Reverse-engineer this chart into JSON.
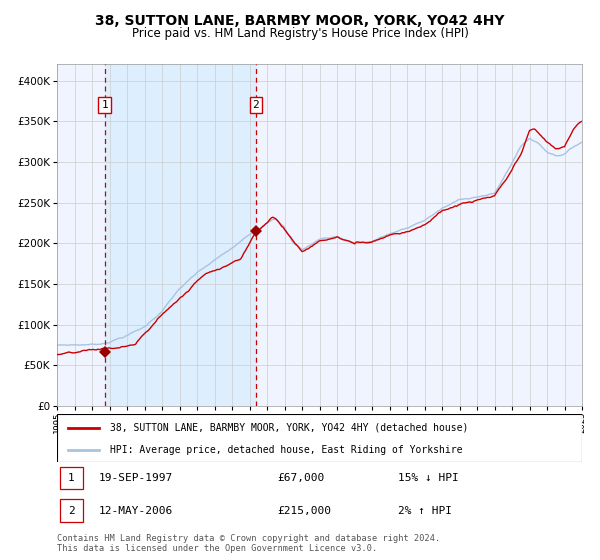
{
  "title": "38, SUTTON LANE, BARMBY MOOR, YORK, YO42 4HY",
  "subtitle": "Price paid vs. HM Land Registry's House Price Index (HPI)",
  "legend_line1": "38, SUTTON LANE, BARMBY MOOR, YORK, YO42 4HY (detached house)",
  "legend_line2": "HPI: Average price, detached house, East Riding of Yorkshire",
  "transaction1_date": "19-SEP-1997",
  "transaction1_price": "£67,000",
  "transaction1_hpi": "15% ↓ HPI",
  "transaction2_date": "12-MAY-2006",
  "transaction2_price": "£215,000",
  "transaction2_hpi": "2% ↑ HPI",
  "footer": "Contains HM Land Registry data © Crown copyright and database right 2024.\nThis data is licensed under the Open Government Licence v3.0.",
  "hpi_color": "#a8c4e0",
  "price_color": "#cc0000",
  "dashed_line_color": "#cc0000",
  "bg_highlight_color": "#ddeeff",
  "marker_color": "#990000",
  "grid_color": "#cccccc",
  "bg_plot_color": "#f0f4ff",
  "ylim": [
    0,
    420000
  ],
  "year_start": 1995,
  "year_end": 2025,
  "transaction1_year": 1997.72,
  "transaction2_year": 2006.36,
  "transaction1_value": 67000,
  "transaction2_value": 215000,
  "hpi_anchors_years": [
    1995.0,
    1997.0,
    1997.5,
    1998.0,
    1999.0,
    2000.0,
    2001.0,
    2002.0,
    2003.0,
    2004.0,
    2005.0,
    2006.0,
    2006.5,
    2007.0,
    2007.5,
    2008.0,
    2008.5,
    2009.0,
    2009.5,
    2010.0,
    2011.0,
    2012.0,
    2013.0,
    2014.0,
    2015.0,
    2016.0,
    2017.0,
    2018.0,
    2019.0,
    2020.0,
    2020.5,
    2021.0,
    2021.5,
    2022.0,
    2022.5,
    2023.0,
    2023.5,
    2024.0,
    2024.5,
    2025.0
  ],
  "hpi_anchors_vals": [
    75000,
    76000,
    77000,
    80000,
    88000,
    98000,
    118000,
    145000,
    163000,
    178000,
    192000,
    208000,
    215000,
    225000,
    232000,
    220000,
    200000,
    192000,
    198000,
    205000,
    208000,
    200000,
    203000,
    212000,
    218000,
    228000,
    242000,
    252000,
    257000,
    260000,
    278000,
    298000,
    318000,
    328000,
    322000,
    312000,
    308000,
    310000,
    318000,
    325000
  ],
  "price_anchors_years": [
    1995.0,
    1996.0,
    1997.0,
    1997.72,
    1998.5,
    1999.5,
    2001.0,
    2002.5,
    2003.5,
    2004.5,
    2005.5,
    2006.36,
    2006.8,
    2007.3,
    2007.6,
    2008.3,
    2009.0,
    2009.5,
    2010.0,
    2011.0,
    2012.0,
    2013.0,
    2014.0,
    2015.0,
    2016.0,
    2017.0,
    2018.0,
    2019.0,
    2019.5,
    2020.0,
    2020.8,
    2021.5,
    2022.0,
    2022.3,
    2023.0,
    2023.5,
    2024.0,
    2024.5,
    2025.0
  ],
  "price_anchors_vals": [
    63000,
    63500,
    65500,
    67000,
    68000,
    72000,
    108000,
    138000,
    160000,
    170000,
    180000,
    215000,
    222000,
    235000,
    230000,
    210000,
    192000,
    198000,
    205000,
    210000,
    202000,
    205000,
    215000,
    220000,
    230000,
    246000,
    254000,
    258000,
    260000,
    262000,
    285000,
    310000,
    338000,
    340000,
    325000,
    315000,
    318000,
    340000,
    350000
  ]
}
